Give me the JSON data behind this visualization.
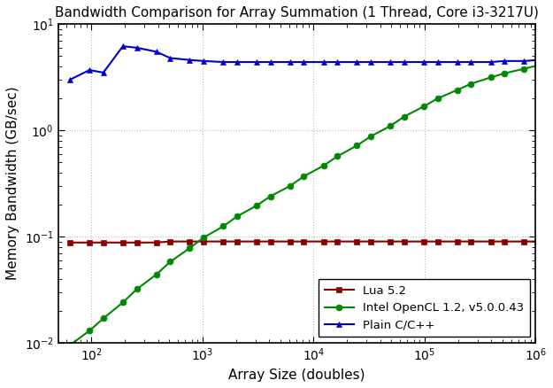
{
  "title": "Bandwidth Comparison for Array Summation (1 Thread, Core i3-3217U)",
  "xlabel": "Array Size (doubles)",
  "ylabel": "Memory Bandwidth (GB/sec)",
  "xlim": [
    50,
    1000000
  ],
  "ylim": [
    0.01,
    10
  ],
  "background_color": "#ffffff",
  "series": {
    "cpp": {
      "label": "Plain C/C++",
      "color": "#0000cc",
      "marker": "^",
      "markersize": 5,
      "linewidth": 1.5,
      "x": [
        64,
        96,
        128,
        192,
        256,
        384,
        512,
        768,
        1024,
        1536,
        2048,
        3072,
        4096,
        6144,
        8192,
        12288,
        16384,
        24576,
        32768,
        49152,
        65536,
        98304,
        131072,
        196608,
        262144,
        393216,
        524288,
        786432,
        1048576
      ],
      "y": [
        3.0,
        3.7,
        3.5,
        6.2,
        6.0,
        5.5,
        4.8,
        4.6,
        4.5,
        4.4,
        4.4,
        4.4,
        4.4,
        4.4,
        4.4,
        4.4,
        4.4,
        4.4,
        4.4,
        4.4,
        4.4,
        4.4,
        4.4,
        4.4,
        4.4,
        4.4,
        4.5,
        4.5,
        4.6
      ]
    },
    "opencl": {
      "label": "Intel OpenCL 1.2, v5.0.0.43",
      "color": "#008800",
      "marker": "o",
      "markersize": 5,
      "linewidth": 1.5,
      "x": [
        64,
        96,
        128,
        192,
        256,
        384,
        512,
        768,
        1024,
        1536,
        2048,
        3072,
        4096,
        6144,
        8192,
        12288,
        16384,
        24576,
        32768,
        49152,
        65536,
        98304,
        131072,
        196608,
        262144,
        393216,
        524288,
        786432,
        1048576
      ],
      "y": [
        0.0095,
        0.013,
        0.017,
        0.024,
        0.032,
        0.044,
        0.058,
        0.078,
        0.098,
        0.125,
        0.155,
        0.196,
        0.24,
        0.3,
        0.37,
        0.465,
        0.57,
        0.72,
        0.88,
        1.1,
        1.35,
        1.68,
        2.0,
        2.4,
        2.75,
        3.15,
        3.45,
        3.8,
        4.1
      ]
    },
    "lua": {
      "label": "Lua 5.2",
      "color": "#880000",
      "marker": "s",
      "markersize": 5,
      "linewidth": 1.5,
      "x": [
        64,
        96,
        128,
        192,
        256,
        384,
        512,
        768,
        1024,
        1536,
        2048,
        3072,
        4096,
        6144,
        8192,
        12288,
        16384,
        24576,
        32768,
        49152,
        65536,
        98304,
        131072,
        196608,
        262144,
        393216,
        524288,
        786432,
        1048576
      ],
      "y": [
        0.088,
        0.088,
        0.088,
        0.088,
        0.088,
        0.088,
        0.09,
        0.09,
        0.09,
        0.09,
        0.09,
        0.09,
        0.09,
        0.09,
        0.09,
        0.09,
        0.09,
        0.09,
        0.09,
        0.09,
        0.09,
        0.09,
        0.09,
        0.09,
        0.09,
        0.09,
        0.09,
        0.09,
        0.09
      ]
    }
  }
}
